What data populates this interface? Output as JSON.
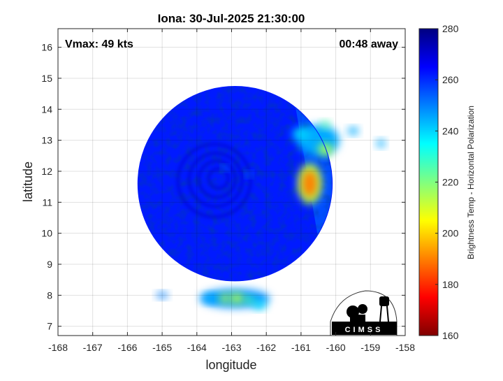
{
  "chart_data": {
    "type": "heatmap",
    "title": "Iona: 30-Jul-2025 21:30:00",
    "xlabel": "longitude",
    "ylabel": "latitude",
    "xlim": [
      -168,
      -158
    ],
    "ylim": [
      6.7,
      16.6
    ],
    "x_ticks": [
      -168,
      -167,
      -166,
      -165,
      -164,
      -163,
      -162,
      -161,
      -160,
      -159,
      -158
    ],
    "y_ticks": [
      7,
      8,
      9,
      10,
      11,
      12,
      13,
      14,
      15,
      16
    ],
    "grid": true,
    "annotations": {
      "vmax": "Vmax: 49 kts",
      "time_away": "00:48 away"
    },
    "colorbar": {
      "label": "Brightness Temp - Horizontal Polarization",
      "min": 160,
      "max": 280,
      "ticks": [
        160,
        180,
        200,
        220,
        240,
        260,
        280
      ],
      "colormap": [
        "#800000",
        "#ff0000",
        "#ff8000",
        "#ffff00",
        "#80ff80",
        "#00ffff",
        "#0080ff",
        "#0000ff",
        "#000080"
      ]
    },
    "swath": {
      "center_lon": -162.9,
      "center_lat": 11.6,
      "radius_lon": 2.8,
      "edge_lon": -161.1
    },
    "storm_center": {
      "lon": -163.5,
      "lat": 11.7
    },
    "features": [
      {
        "lon": -160.75,
        "lat": 11.6,
        "tb": 190,
        "rlon": 0.22,
        "rlat": 0.45
      },
      {
        "lon": -160.75,
        "lat": 11.6,
        "tb": 215,
        "rlon": 0.35,
        "rlat": 0.65
      },
      {
        "lon": -160.3,
        "lat": 12.7,
        "tb": 215,
        "rlon": 0.2,
        "rlat": 0.2
      },
      {
        "lon": -160.3,
        "lat": 13.5,
        "tb": 225,
        "rlon": 0.12,
        "rlat": 0.12
      },
      {
        "lon": -161.0,
        "lat": 13.2,
        "tb": 240,
        "rlon": 0.25,
        "rlat": 0.2
      },
      {
        "lon": -160.5,
        "lat": 13.0,
        "tb": 245,
        "rlon": 0.6,
        "rlat": 0.5
      },
      {
        "lon": -159.5,
        "lat": 13.3,
        "tb": 245,
        "rlon": 0.15,
        "rlat": 0.12
      },
      {
        "lon": -158.7,
        "lat": 12.9,
        "tb": 245,
        "rlon": 0.12,
        "rlat": 0.12
      },
      {
        "lon": -163.2,
        "lat": 7.9,
        "tb": 215,
        "rlon": 0.15,
        "rlat": 0.15
      },
      {
        "lon": -162.85,
        "lat": 7.9,
        "tb": 215,
        "rlon": 0.2,
        "rlat": 0.18
      },
      {
        "lon": -162.5,
        "lat": 7.85,
        "tb": 225,
        "rlon": 0.15,
        "rlat": 0.12
      },
      {
        "lon": -162.2,
        "lat": 7.7,
        "tb": 240,
        "rlon": 0.2,
        "rlat": 0.15
      },
      {
        "lon": -163.6,
        "lat": 7.9,
        "tb": 245,
        "rlon": 0.25,
        "rlat": 0.15
      },
      {
        "lon": -162.9,
        "lat": 7.9,
        "tb": 248,
        "rlon": 1.0,
        "rlat": 0.3
      },
      {
        "lon": -165.0,
        "lat": 8.0,
        "tb": 250,
        "rlon": 0.15,
        "rlat": 0.1
      },
      {
        "lon": -163.2,
        "lat": 12.1,
        "tb": 245,
        "rlon": 0.08,
        "rlat": 0.08
      },
      {
        "lon": -162.5,
        "lat": 11.9,
        "tb": 245,
        "rlon": 0.08,
        "rlat": 0.08
      }
    ],
    "logo_text": "CIMSS"
  }
}
